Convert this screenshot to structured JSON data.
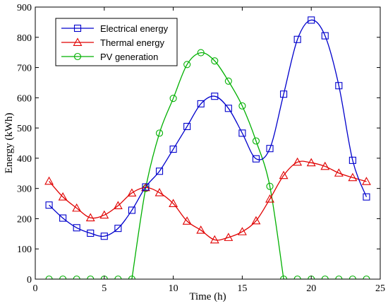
{
  "chart_data": {
    "type": "line",
    "xlabel": "Time (h)",
    "ylabel": "Energy (kWh)",
    "xlim": [
      0,
      25
    ],
    "ylim": [
      0,
      900
    ],
    "xticks": [
      0,
      5,
      10,
      15,
      20,
      25
    ],
    "yticks": [
      0,
      100,
      200,
      300,
      400,
      500,
      600,
      700,
      800,
      900
    ],
    "grid": false,
    "legend_position": "top-left",
    "x": [
      1,
      2,
      3,
      4,
      5,
      6,
      7,
      8,
      9,
      10,
      11,
      12,
      13,
      14,
      15,
      16,
      17,
      18,
      19,
      20,
      21,
      22,
      23,
      24
    ],
    "series": [
      {
        "name": "Electrical energy",
        "color": "#0000cc",
        "marker": "square",
        "values": [
          245,
          202,
          170,
          152,
          142,
          168,
          228,
          305,
          357,
          430,
          505,
          580,
          605,
          565,
          483,
          398,
          432,
          612,
          793,
          857,
          805,
          640,
          393,
          272
        ]
      },
      {
        "name": "Thermal energy",
        "color": "#e00000",
        "marker": "triangle",
        "values": [
          324,
          272,
          235,
          203,
          212,
          243,
          285,
          303,
          286,
          250,
          192,
          162,
          130,
          138,
          157,
          193,
          265,
          343,
          387,
          385,
          373,
          351,
          336,
          323
        ]
      },
      {
        "name": "PV generation",
        "color": "#00b000",
        "marker": "circle",
        "values": [
          0,
          0,
          0,
          0,
          0,
          0,
          0,
          300,
          483,
          598,
          710,
          749,
          722,
          655,
          573,
          457,
          307,
          0,
          0,
          0,
          0,
          0,
          0,
          0
        ]
      }
    ]
  }
}
